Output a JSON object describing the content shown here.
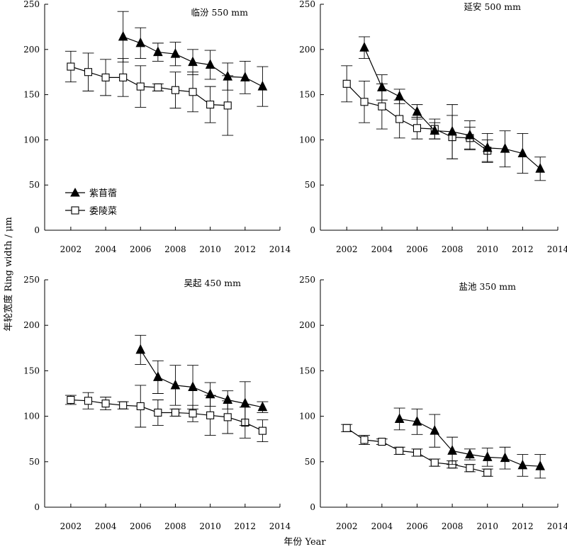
{
  "figure": {
    "ylabel": "年轮宽度 Ring width / μm",
    "xlabel": "年份 Year"
  },
  "legend": {
    "series_a": "紫苜蓿",
    "series_b": "委陵菜"
  },
  "chart_data": [
    {
      "type": "line",
      "title": "临汾 550 mm",
      "xlim": [
        2000.5,
        2014
      ],
      "ylim": [
        0,
        250
      ],
      "xticks": [
        2002,
        2004,
        2006,
        2008,
        2010,
        2012,
        2014
      ],
      "yticks": [
        0,
        50,
        100,
        150,
        200,
        250
      ],
      "series": [
        {
          "name": "紫苜蓿",
          "marker": "filled-triangle",
          "x": [
            2005,
            2006,
            2007,
            2008,
            2009,
            2010,
            2011,
            2012,
            2013
          ],
          "y": [
            214,
            207,
            197,
            195,
            186,
            183,
            170,
            169,
            159
          ],
          "err": [
            28,
            17,
            10,
            13,
            14,
            16,
            15,
            18,
            22
          ]
        },
        {
          "name": "委陵菜",
          "marker": "open-square",
          "x": [
            2002,
            2003,
            2004,
            2005,
            2006,
            2007,
            2008,
            2009,
            2010,
            2011
          ],
          "y": [
            181,
            175,
            169,
            169,
            159,
            158,
            155,
            153,
            139,
            138
          ],
          "err": [
            17,
            21,
            20,
            21,
            23,
            4,
            20,
            22,
            20,
            33
          ]
        }
      ]
    },
    {
      "type": "line",
      "title": "延安 500 mm",
      "xlim": [
        2000.5,
        2014
      ],
      "ylim": [
        0,
        250
      ],
      "xticks": [
        2002,
        2004,
        2006,
        2008,
        2010,
        2012,
        2014
      ],
      "yticks": [
        0,
        50,
        100,
        150,
        200,
        250
      ],
      "series": [
        {
          "name": "紫苜蓿",
          "marker": "filled-triangle",
          "x": [
            2003,
            2004,
            2005,
            2006,
            2007,
            2008,
            2009,
            2010,
            2011,
            2012,
            2013
          ],
          "y": [
            202,
            158,
            148,
            131,
            110,
            109,
            105,
            91,
            90,
            85,
            68
          ],
          "err": [
            12,
            14,
            8,
            8,
            9,
            30,
            16,
            16,
            20,
            22,
            13
          ]
        },
        {
          "name": "委陵菜",
          "marker": "open-square",
          "x": [
            2002,
            2003,
            2004,
            2005,
            2006,
            2007,
            2008,
            2009,
            2010
          ],
          "y": [
            162,
            142,
            137,
            123,
            113,
            112,
            103,
            102,
            88
          ],
          "err": [
            20,
            23,
            25,
            21,
            12,
            11,
            24,
            12,
            12
          ]
        }
      ]
    },
    {
      "type": "line",
      "title": "吴起 450 mm",
      "xlim": [
        2000.5,
        2014
      ],
      "ylim": [
        0,
        250
      ],
      "xticks": [
        2002,
        2004,
        2006,
        2008,
        2010,
        2012,
        2014
      ],
      "yticks": [
        0,
        50,
        100,
        150,
        200,
        250
      ],
      "series": [
        {
          "name": "紫苜蓿",
          "marker": "filled-triangle",
          "x": [
            2006,
            2007,
            2008,
            2009,
            2010,
            2011,
            2012,
            2013
          ],
          "y": [
            173,
            143,
            134,
            132,
            124,
            118,
            114,
            110
          ],
          "err": [
            16,
            18,
            22,
            24,
            13,
            10,
            24,
            6
          ]
        },
        {
          "name": "委陵菜",
          "marker": "open-square",
          "x": [
            2002,
            2003,
            2004,
            2005,
            2006,
            2007,
            2008,
            2009,
            2010,
            2011,
            2012,
            2013
          ],
          "y": [
            118,
            117,
            114,
            112,
            111,
            104,
            104,
            103,
            101,
            99,
            93,
            84
          ],
          "err": [
            5,
            9,
            7,
            4,
            23,
            14,
            4,
            9,
            22,
            18,
            17,
            12
          ]
        }
      ]
    },
    {
      "type": "line",
      "title": "盐池 350 mm",
      "xlim": [
        2000.5,
        2014
      ],
      "ylim": [
        0,
        250
      ],
      "xticks": [
        2002,
        2004,
        2006,
        2008,
        2010,
        2012,
        2014
      ],
      "yticks": [
        0,
        50,
        100,
        150,
        200,
        250
      ],
      "series": [
        {
          "name": "紫苜蓿",
          "marker": "filled-triangle",
          "x": [
            2005,
            2006,
            2007,
            2008,
            2009,
            2010,
            2011,
            2012,
            2013
          ],
          "y": [
            97,
            94,
            84,
            62,
            58,
            55,
            54,
            46,
            45
          ],
          "err": [
            12,
            14,
            18,
            15,
            6,
            10,
            12,
            12,
            13
          ]
        },
        {
          "name": "委陵菜",
          "marker": "open-square",
          "x": [
            2002,
            2003,
            2004,
            2005,
            2006,
            2007,
            2008,
            2009,
            2010
          ],
          "y": [
            87,
            74,
            72,
            62,
            60,
            49,
            47,
            43,
            38
          ],
          "err": [
            4,
            5,
            3,
            4,
            4,
            4,
            4,
            4,
            4
          ]
        }
      ]
    }
  ]
}
